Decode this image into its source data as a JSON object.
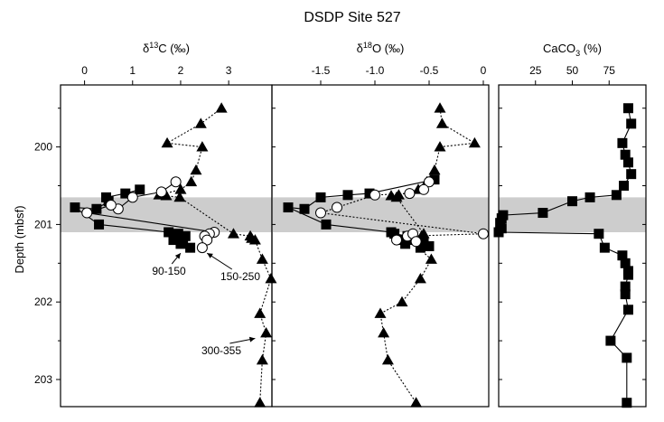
{
  "figure_title": "DSDP Site 527",
  "ylabel": "Depth (mbsf)",
  "y_ticks": [
    200,
    201,
    202,
    203
  ],
  "y_range": [
    199.2,
    203.35
  ],
  "shaded_interval": [
    200.65,
    201.1
  ],
  "chart_data": [
    {
      "type": "scatter",
      "title": "δ13C (‰)",
      "title_parts": {
        "pre": "δ",
        "sup": "13",
        "post": "C (‰)"
      },
      "x_range": [
        -0.5,
        3.9
      ],
      "x_ticks": [
        0,
        1,
        2,
        3
      ],
      "series": [
        {
          "marker": "triangle",
          "line": "dotted",
          "x": [
            2.85,
            2.42,
            1.72,
            2.45,
            2.32,
            2.22,
            2.0,
            1.55,
            1.7,
            1.98,
            3.1,
            3.45,
            3.48,
            3.55,
            3.7,
            3.88,
            3.65,
            3.78,
            3.7,
            3.65
          ],
          "y": [
            199.5,
            199.7,
            199.95,
            200.0,
            200.3,
            200.45,
            200.55,
            200.62,
            200.63,
            200.65,
            201.12,
            201.15,
            201.18,
            201.2,
            201.45,
            201.7,
            202.15,
            202.4,
            202.75,
            203.3
          ]
        },
        {
          "marker": "square",
          "line": "solid",
          "x": [
            1.15,
            0.85,
            0.45,
            0.5,
            0.25,
            -0.2,
            0.3,
            1.75,
            1.95,
            2.1,
            1.85,
            2.05,
            2.0,
            2.2
          ],
          "y": [
            200.55,
            200.6,
            200.65,
            200.7,
            200.8,
            200.78,
            201.0,
            201.1,
            201.12,
            201.15,
            201.2,
            201.22,
            201.25,
            201.3
          ]
        },
        {
          "marker": "circle",
          "line": "solid",
          "x": [
            1.9,
            1.6,
            1.0,
            0.7,
            0.55,
            0.05,
            2.7,
            2.6,
            2.5,
            2.55,
            2.45
          ],
          "y": [
            200.45,
            200.58,
            200.65,
            200.8,
            200.75,
            200.85,
            201.1,
            201.12,
            201.15,
            201.2,
            201.3
          ]
        }
      ],
      "annotations": [
        {
          "text": "90-150",
          "arrow_to": [
            2.0,
            201.3
          ]
        },
        {
          "text": "150-250",
          "arrow_to": [
            2.55,
            201.3
          ]
        },
        {
          "text": "300-355",
          "arrow_to": [
            3.55,
            202.4
          ]
        }
      ]
    },
    {
      "type": "scatter",
      "title": "δ18O (‰)",
      "title_parts": {
        "pre": "δ",
        "sup": "18",
        "post": "O (‰)"
      },
      "x_range": [
        -1.95,
        0.05
      ],
      "x_ticks": [
        -1.5,
        -1.0,
        -0.5,
        0
      ],
      "x_tick_labels": [
        "-1.5",
        "-1.0",
        "-0.5",
        "0"
      ],
      "series": [
        {
          "marker": "triangle",
          "line": "dotted",
          "x": [
            -0.4,
            -0.38,
            -0.08,
            -0.4,
            -0.45,
            -0.52,
            -0.6,
            -0.78,
            -0.85,
            -0.8,
            -0.55,
            -0.57,
            -0.68,
            -0.48,
            -0.58,
            -0.75,
            -0.95,
            -0.92,
            -0.88,
            -0.62
          ],
          "y": [
            199.5,
            199.7,
            199.95,
            200.0,
            200.3,
            200.45,
            200.55,
            200.62,
            200.63,
            200.65,
            201.12,
            201.15,
            201.2,
            201.45,
            201.7,
            202.0,
            202.15,
            202.4,
            202.75,
            203.3
          ]
        },
        {
          "marker": "square",
          "line": "solid",
          "x": [
            -0.45,
            -1.05,
            -1.25,
            -1.5,
            -1.65,
            -1.8,
            -1.45,
            -0.85,
            -0.82,
            -0.7,
            -0.78,
            -0.55,
            -0.72,
            -0.5,
            -0.58
          ],
          "y": [
            200.42,
            200.6,
            200.62,
            200.65,
            200.8,
            200.78,
            201.0,
            201.1,
            201.12,
            201.15,
            201.2,
            201.22,
            201.25,
            201.28,
            201.3
          ]
        },
        {
          "marker": "circle",
          "line": "dotted",
          "x": [
            -0.5,
            -0.55,
            -0.68,
            -1.0,
            -1.35,
            -1.5,
            0.0,
            -0.7,
            -0.65,
            -0.8,
            -0.62
          ],
          "y": [
            200.45,
            200.55,
            200.6,
            200.62,
            200.78,
            200.85,
            201.12,
            201.15,
            201.12,
            201.2,
            201.22
          ]
        }
      ]
    },
    {
      "type": "line",
      "title": "CaCO3 (%)",
      "title_parts": {
        "pre": "CaCO",
        "sub": "3",
        "post": " (%)"
      },
      "x_range": [
        0,
        100
      ],
      "x_ticks": [
        25,
        50,
        75
      ],
      "series": [
        {
          "marker": "square",
          "line": "solid",
          "x": [
            88,
            90,
            84,
            86,
            88,
            90,
            85,
            80,
            62,
            50,
            30,
            3,
            2,
            1,
            2,
            0,
            68,
            72,
            84,
            86,
            88,
            88,
            86,
            86,
            88,
            76,
            87,
            87
          ],
          "y": [
            199.5,
            199.7,
            199.95,
            200.1,
            200.2,
            200.35,
            200.5,
            200.62,
            200.65,
            200.7,
            200.85,
            200.88,
            200.92,
            200.98,
            201.05,
            201.1,
            201.12,
            201.3,
            201.4,
            201.5,
            201.6,
            201.65,
            201.8,
            201.9,
            202.1,
            202.5,
            202.72,
            203.3
          ]
        }
      ]
    }
  ]
}
